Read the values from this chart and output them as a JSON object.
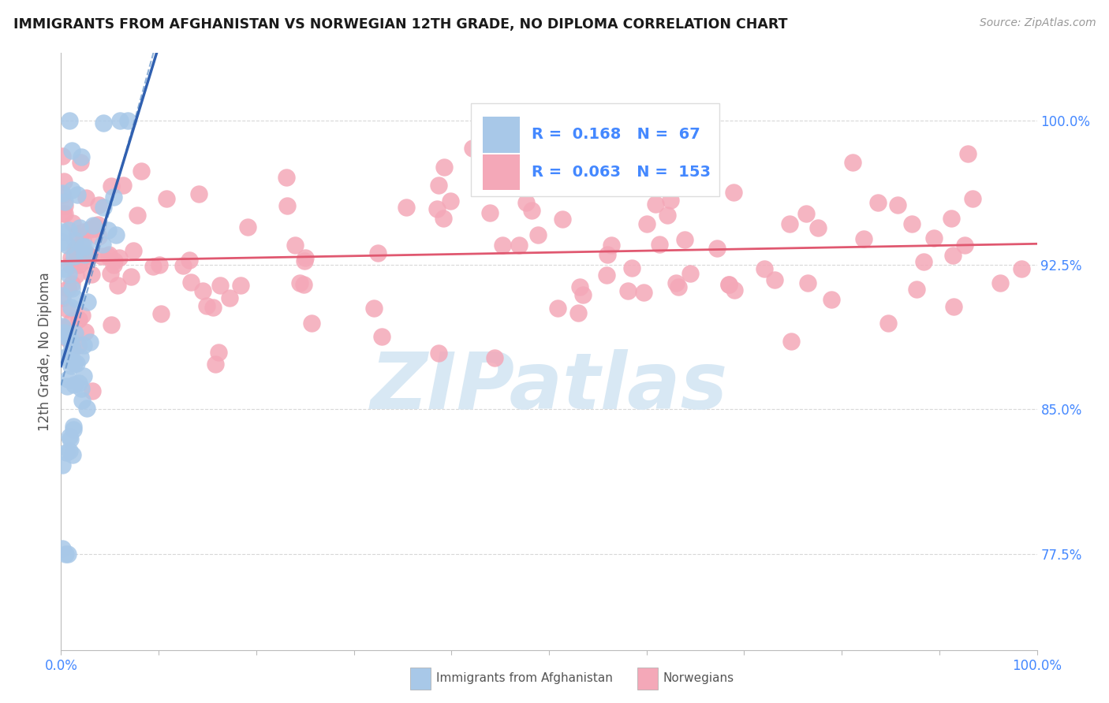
{
  "title": "IMMIGRANTS FROM AFGHANISTAN VS NORWEGIAN 12TH GRADE, NO DIPLOMA CORRELATION CHART",
  "source": "Source: ZipAtlas.com",
  "ylabel": "12th Grade, No Diploma",
  "yticks": [
    "77.5%",
    "85.0%",
    "92.5%",
    "100.0%"
  ],
  "ytick_vals": [
    0.775,
    0.85,
    0.925,
    1.0
  ],
  "xlim": [
    0.0,
    1.0
  ],
  "ylim": [
    0.725,
    1.035
  ],
  "legend_blue_R": "0.168",
  "legend_blue_N": "67",
  "legend_pink_R": "0.063",
  "legend_pink_N": "153",
  "blue_color": "#a8c8e8",
  "blue_edge_color": "#80a8d0",
  "pink_color": "#f4a8b8",
  "pink_edge_color": "#e08090",
  "blue_line_color": "#3060b0",
  "pink_line_color": "#e05870",
  "blue_dash_color": "#6090c8",
  "watermark_text": "ZIPatlas",
  "watermark_color": "#d8e8f4",
  "grid_color": "#d8d8d8",
  "tick_color": "#4488ff",
  "title_color": "#1a1a1a",
  "source_color": "#999999",
  "ylabel_color": "#555555",
  "legend_border": "#dddddd"
}
